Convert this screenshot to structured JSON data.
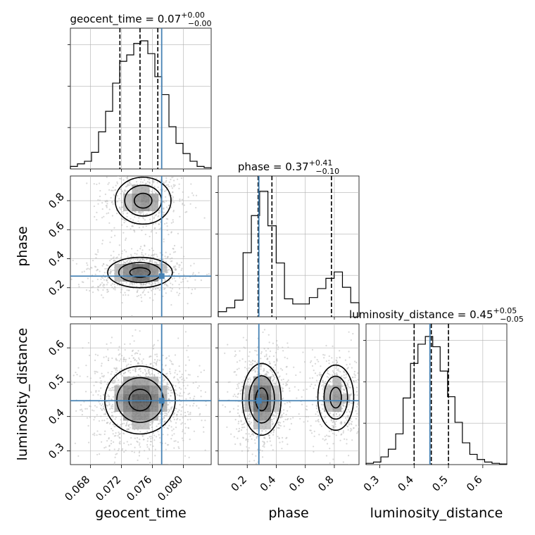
{
  "chart_data": {
    "type": "corner",
    "parameters": [
      "geocent_time",
      "phase",
      "luminosity_distance"
    ],
    "truth_color": "#4682b4",
    "panels": {
      "geocent_time": {
        "title": "geocent_time = 0.07",
        "title_sup": "+0.00",
        "title_sub": "−0.00",
        "median": 0.0744,
        "quantiles": [
          0.0718,
          0.0744,
          0.0767
        ],
        "truth": 0.0772,
        "range": [
          0.0654,
          0.0836
        ],
        "ticks": [
          0.068,
          0.072,
          0.076,
          0.08
        ],
        "tick_labels": [
          "0.068",
          "0.072",
          "0.076",
          "0.080"
        ],
        "axis_label": "geocent_time",
        "hist_heights": [
          0.02,
          0.04,
          0.06,
          0.13,
          0.29,
          0.45,
          0.67,
          0.84,
          0.89,
          0.98,
          1.0,
          0.9,
          0.72,
          0.58,
          0.33,
          0.2,
          0.12,
          0.06,
          0.02,
          0.01
        ]
      },
      "phase": {
        "title": "phase = 0.37",
        "title_sup": "+0.41",
        "title_sub": "−0.10",
        "median": 0.37,
        "quantiles": [
          0.275,
          0.37,
          0.78
        ],
        "truth": 0.28,
        "range": [
          0.0,
          0.97
        ],
        "ticks": [
          0.2,
          0.4,
          0.6,
          0.8
        ],
        "tick_labels": [
          "0.2",
          "0.4",
          "0.6",
          "0.8"
        ],
        "axis_label": "phase",
        "hist_heights": [
          0.04,
          0.07,
          0.13,
          0.5,
          0.79,
          0.98,
          0.71,
          0.42,
          0.14,
          0.1,
          0.1,
          0.15,
          0.22,
          0.3,
          0.35,
          0.23,
          0.11
        ]
      },
      "luminosity_distance": {
        "title": "luminosity_distance = 0.45",
        "title_sup": "+0.05",
        "title_sub": "−0.05",
        "median": 0.45,
        "quantiles": [
          0.4,
          0.45,
          0.5
        ],
        "truth": 0.446,
        "range": [
          0.26,
          0.67
        ],
        "ticks": [
          0.3,
          0.4,
          0.5,
          0.6
        ],
        "tick_labels": [
          "0.3",
          "0.4",
          "0.5",
          "0.6"
        ],
        "axis_label": "luminosity_distance",
        "hist_heights": [
          0.01,
          0.02,
          0.06,
          0.12,
          0.24,
          0.52,
          0.79,
          0.94,
          1.0,
          0.92,
          0.73,
          0.53,
          0.33,
          0.17,
          0.08,
          0.04,
          0.02,
          0.01,
          0.005
        ]
      }
    },
    "pairs": [
      {
        "x": "geocent_time",
        "y": "phase",
        "modes": [
          {
            "cx": 0.0744,
            "cy": 0.305,
            "sx": 0.0022,
            "sy": 0.055,
            "w": 1.0
          },
          {
            "cx": 0.0748,
            "cy": 0.8,
            "sx": 0.0019,
            "sy": 0.085,
            "w": 0.7
          }
        ],
        "density_peaks": [
          {
            "x": 0.0744,
            "y": 0.305
          },
          {
            "x": 0.0748,
            "y": 0.82
          }
        ]
      },
      {
        "x": "geocent_time",
        "y": "luminosity_distance",
        "modes": [
          {
            "cx": 0.0744,
            "cy": 0.448,
            "sx": 0.0024,
            "sy": 0.052,
            "w": 1.0
          }
        ],
        "density_peaks": [
          {
            "x": 0.0744,
            "y": 0.448
          }
        ]
      },
      {
        "x": "phase",
        "y": "luminosity_distance",
        "modes": [
          {
            "cx": 0.3,
            "cy": 0.45,
            "sx": 0.07,
            "sy": 0.055,
            "w": 1.0
          },
          {
            "cx": 0.81,
            "cy": 0.455,
            "sx": 0.065,
            "sy": 0.05,
            "w": 0.62
          }
        ],
        "density_peaks": [
          {
            "x": 0.3,
            "y": 0.45
          },
          {
            "x": 0.81,
            "y": 0.455
          }
        ]
      }
    ],
    "grid": true
  }
}
